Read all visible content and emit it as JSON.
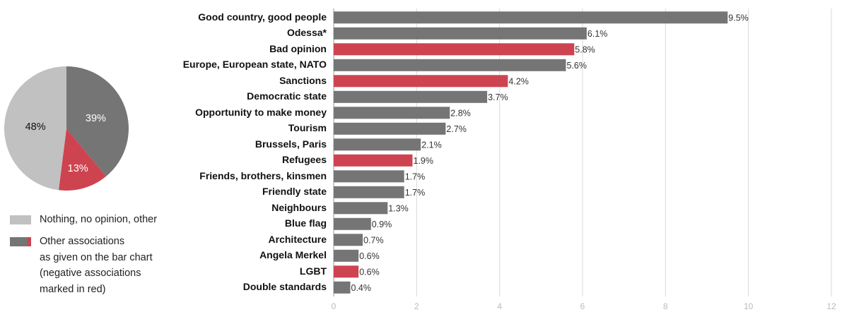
{
  "colors": {
    "neutral": "#757575",
    "negative": "#cd4450",
    "no_opinion": "#c1c1c1",
    "grid": "#d9d9d9",
    "tick": "#bbbbbb"
  },
  "legend": {
    "item1": "Nothing, no opinion, other",
    "item2_lines": [
      "Other associations",
      "as given on the bar chart",
      "(negative associations",
      "marked in red)"
    ]
  },
  "chart_data": [
    {
      "type": "pie",
      "slices": [
        {
          "label": "39%",
          "value": 39,
          "color": "#757575"
        },
        {
          "label": "13%",
          "value": 13,
          "color": "#cd4450"
        },
        {
          "label": "48%",
          "value": 48,
          "color": "#c1c1c1"
        }
      ]
    },
    {
      "type": "bar",
      "orientation": "horizontal",
      "categories": [
        "Good country, good people",
        "Odessa*",
        "Bad opinion",
        "Europe, European state, NATO",
        "Sanctions",
        "Democratic state",
        "Opportunity to make money",
        "Tourism",
        "Brussels, Paris",
        "Refugees",
        "Friends, brothers, kinsmen",
        "Friendly state",
        "Neighbours",
        "Blue flag",
        "Architecture",
        "Angela Merkel",
        "LGBT",
        "Double standards"
      ],
      "values": [
        9.5,
        6.1,
        5.8,
        5.6,
        4.2,
        3.7,
        2.8,
        2.7,
        2.1,
        1.9,
        1.7,
        1.7,
        1.3,
        0.9,
        0.7,
        0.6,
        0.6,
        0.4
      ],
      "value_labels": [
        "9.5%",
        "6.1%",
        "5.8%",
        "5.6%",
        "4.2%",
        "3.7%",
        "2.8%",
        "2.7%",
        "2.1%",
        "1.9%",
        "1.7%",
        "1.7%",
        "1.3%",
        "0.9%",
        "0.7%",
        "0.6%",
        "0.6%",
        "0.4%"
      ],
      "negative": [
        false,
        false,
        true,
        false,
        true,
        false,
        false,
        false,
        false,
        true,
        false,
        false,
        false,
        false,
        false,
        false,
        true,
        false
      ],
      "xlim": [
        0,
        12
      ],
      "xticks": [
        "0",
        "2",
        "4",
        "6",
        "8",
        "10",
        "12"
      ],
      "grid": true
    }
  ]
}
